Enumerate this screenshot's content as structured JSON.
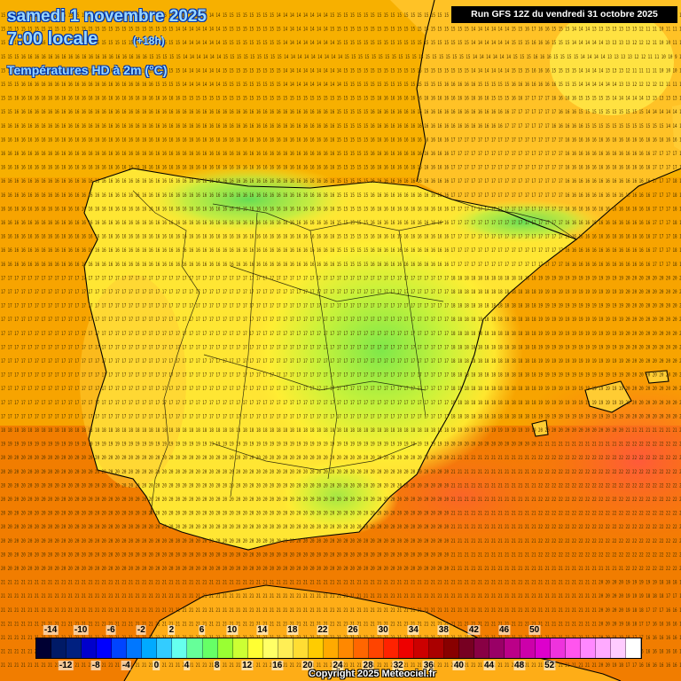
{
  "header": {
    "date": "samedi 1 novembre 2025",
    "time": "7:00 locale",
    "offset": "(+18h)",
    "parameter": "Températures HD à 2m (°C)",
    "run": "Run GFS 12Z du vendredi 31 octobre 2025"
  },
  "legend": {
    "top_labels": [
      "-14",
      "-10",
      "-6",
      "-2",
      "2",
      "6",
      "10",
      "14",
      "18",
      "22",
      "26",
      "30",
      "34",
      "38",
      "42",
      "46",
      "50"
    ],
    "bottom_labels": [
      "-12",
      "-8",
      "-4",
      "0",
      "4",
      "8",
      "12",
      "16",
      "20",
      "24",
      "28",
      "32",
      "36",
      "40",
      "44",
      "48",
      "52"
    ],
    "colors": [
      "#000033",
      "#001a66",
      "#002080",
      "#0000cc",
      "#0000ff",
      "#0044ff",
      "#0077ff",
      "#00aaff",
      "#33ccff",
      "#66ffee",
      "#66ff99",
      "#66ff66",
      "#99ff33",
      "#ccff33",
      "#ffff33",
      "#ffff66",
      "#ffee55",
      "#ffdd33",
      "#ffcc00",
      "#ffaa00",
      "#ff8800",
      "#ff6600",
      "#ff4400",
      "#ff2200",
      "#ee0000",
      "#cc0000",
      "#aa0000",
      "#880000",
      "#770022",
      "#880044",
      "#990066",
      "#bb0088",
      "#cc00aa",
      "#dd00cc",
      "#ee33dd",
      "#ff55ee",
      "#ff88ff",
      "#ffaaff",
      "#ffccff",
      "#ffffff"
    ]
  },
  "copyright": "Copyright 2025 Meteociel.fr",
  "grid_rows": [
    "15 15 15 15 15 15 15 15 15 15 15 15 15 15 15 15 15 15 15 15 15 15 15 15 15 15 14 15 14 14 14 14 14 15 15 15 15 15 15 15 15 14 14 14 14 14 14 14 14 15 15 15 15 15 15 15 15 15 15 15 15 15 15 15 15 15 15 15 15 15 14 14 14 14 14 14 15 15 16 16 16 16 15 15 15 15 14 14 14 14 14 14 13 13 12 12 11 11 11 11 11 11 11",
    "15 15 15 15 15 15 15 15 15 15 15 15 15 15 15 15 15 15 15 15 15 15 15 15 15 15 14 14 14 14 14 14 14 15 15 15 15 15 15 15 15 15 14 14 14 14 14 14 14 15 15 15 15 15 15 15 15 15 15 15 15 15 15 15 15 15 15 15 15 15 14 14 14 14 14 14 15 15 16 17 16 16 15 15 15 14 14 14 13 13 13 13 13 13 13 12 11 11 10 11 11 11 11",
    "15 15 15 16 16 16 16 16 16 16 15 15 15 15 15 15 15 15 15 15 15 15 15 15 15 15 15 14 14 14 14 14 14 15 15 15 15 15 15 15 15 15 14 14 14 14 14 14 14 14 15 15 15 15 15 15 15 15 15 15 15 15 15 15 15 15 15 15 15 15 14 14 14 14 14 14 15 15 15 16 16 16 15 15 15 14 14 14 14 14 13 13 13 13 12 12 12 11 10 10 11 11 11",
    "15 15 15 16 16 16 16 16 16 16 16 16 16 16 16 16 16 16 16 16 16 16 15 15 15 15 15 14 14 14 14 14 14 15 15 15 15 15 15 15 15 15 14 14 14 14 14 14 14 14 14 15 15 15 15 15 15 15 15 15 15 15 15 15 15 15 15 15 15 15 14 14 14 14 14 14 15 15 15 16 16 16 15 15 15 15 14 14 14 14 13 13 13 13 12 12 11 11 10 10 9 10 11",
    "15 15 15 16 16 16 16 16 16 16 16 16 16 16 16 16 16 16 16 16 16 16 15 15 15 15 15 14 14 14 14 14 14 15 15 15 15 15 15 15 15 15 14 14 14 14 14 14 14 14 14 15 15 15 15 15 15 15 15 15 15 15 15 15 15 15 15 15 15 15 14 14 14 14 14 14 15 15 15 16 16 16 15 15 15 15 14 14 14 14 13 13 13 12 11 11 11 11 10 10 10 10 10",
    "15 15 15 16 16 16 16 16 16 16 16 16 16 16 16 16 16 16 16 16 16 16 16 15 15 15 15 14 14 14 14 14 14 15 15 15 15 15 15 15 15 15 14 14 14 14 14 14 14 14 14 15 15 15 15 15 15 15 15 15 15 15 15 15 15 15 16 16 16 16 16 15 15 15 15 15 16 16 16 16 16 16 16 15 15 15 14 14 14 14 14 14 13 13 12 12 12 12 12 11 11 11 11",
    "15 15 16 16 16 16 16 16 16 16 16 16 16 16 16 16 16 16 16 16 16 16 16 16 16 16 16 15 15 15 15 15 15 15 15 15 15 15 15 15 15 15 15 15 15 15 15 15 15 15 15 15 15 15 15 15 16 16 16 16 16 16 16 16 16 16 16 16 16 16 16 16 16 15 15 15 16 16 17 17 17 17 16 16 16 16 15 15 15 15 15 14 14 14 14 14 13 13 13 13 13 13 12",
    "15 15 16 16 16 16 16 16 16 16 16 16 16 16 16 16 16 16 16 16 16 16 16 16 16 16 16 16 16 16 16 16 16 16 16 16 16 16 16 16 16 16 16 16 16 16 16 16 16 16 15 15 15 15 15 16 16 16 16 16 16 16 16 16 16 16 16 16 16 16 16 16 16 16 16 16 17 17 17 17 17 17 17 16 16 16 15 15 15 15 15 15 15 15 15 15 14 14 14 14 14 14 13",
    "16 16 16 16 16 16 16 16 16 16 16 16 16 16 16 16 16 16 16 16 16 16 16 16 16 16 16 16 16 16 16 16 16 16 16 16 16 16 16 16 16 16 16 16 16 16 16 16 16 16 15 15 15 15 15 16 16 16 16 16 16 16 16 16 16 16 16 16 16 16 16 16 16 16 16 17 17 17 17 17 17 17 16 16 16 16 16 15 15 15 15 15 15 15 15 15 15 15 15 14 14 14 14",
    "16 16 16 16 16 16 16 16 16 16 16 16 16 16 16 16 16 16 16 16 16 16 16 16 16 16 16 16 16 16 16 16 16 16 16 16 16 16 16 16 16 16 16 16 16 16 16 16 16 16 15 15 15 15 15 16 16 16 16 16 16 16 16 16 16 16 16 17 17 17 17 17 17 17 17 17 17 17 17 17 17 17 17 17 16 16 16 16 16 16 16 16 16 16 16 16 16 16 16 16 16 16 16",
    "16 16 16 16 16 16 16 16 16 16 16 16 16 16 16 16 16 16 16 16 16 16 16 16 16 16 16 16 16 16 16 16 16 16 16 16 16 16 16 16 16 16 16 16 16 16 16 16 16 16 15 15 15 15 15 16 16 16 16 16 16 16 16 16 16 16 16 17 17 17 17 17 17 17 17 17 17 17 17 17 17 17 17 17 16 16 16 16 16 16 16 16 16 16 16 16 16 17 17 17 17 17 17",
    "16 16 16 16 16 16 16 16 16 16 16 16 16 16 16 16 16 16 16 16 16 16 16 16 16 16 16 16 16 16 16 16 16 16 16 16 16 16 16 16 16 16 16 16 16 16 16 16 16 16 15 15 15 15 15 16 16 16 16 16 16 16 16 16 16 16 16 17 17 17 17 17 17 17 17 17 17 17 17 17 17 17 17 17 16 16 16 16 16 16 16 16 16 16 16 16 16 17 17 17 17 17 17",
    "16 16 16 16 16 16 16 16 16 16 16 16 16 16 16 16 16 16 16 16 16 16 16 16 16 16 16 16 16 16 16 16 16 16 16 16 16 16 16 16 16 16 16 16 16 16 16 16 16 16 15 15 15 15 15 16 16 16 16 16 16 16 16 16 16 16 16 17 17 17 17 17 17 17 17 17 17 17 17 17 17 17 17 17 16 16 16 16 16 16 16 16 16 16 16 16 16 17 17 17 18 18 18",
    "16 16 16 16 16 16 16 16 16 16 16 16 16 16 16 16 16 16 16 16 16 16 16 16 16 16 16 16 16 16 16 16 16 16 16 16 16 16 16 16 16 16 16 16 16 16 16 16 16 16 15 15 15 15 15 16 16 16 16 16 16 16 16 16 16 16 16 17 17 17 17 17 17 17 17 17 17 17 17 17 17 17 17 17 16 16 16 16 16 16 16 16 16 16 16 16 16 17 17 17 18 18 18",
    "16 16 16 16 16 16 16 16 16 16 16 16 16 16 16 16 16 16 16 16 16 16 16 16 16 16 16 16 16 16 16 16 16 16 16 16 16 16 16 16 16 16 16 16 16 16 16 16 16 16 15 15 15 15 15 16 16 16 16 16 16 16 16 16 16 16 16 17 17 17 17 17 17 17 17 17 17 17 17 17 17 17 17 17 16 16 16 16 16 16 16 16 16 16 16 16 16 17 17 17 18 18 18",
    "16 16 16 16 16 16 16 16 16 16 16 16 16 16 16 16 16 16 16 16 16 16 16 16 16 16 16 16 16 16 16 16 16 16 16 16 16 16 16 16 16 16 16 16 16 16 16 16 16 16 15 15 15 15 15 16 16 16 16 16 16 16 16 16 16 16 16 17 17 17 17 17 17 17 17 17 17 17 17 17 17 17 17 17 16 16 16 16 16 16 16 16 16 16 16 16 16 17 17 17 18 18 18",
    "16 16 16 16 16 16 16 16 16 16 16 16 16 16 16 16 16 16 16 16 16 16 16 16 16 16 16 16 16 16 16 16 16 16 16 16 16 16 16 16 16 16 16 16 16 16 16 16 16 16 15 15 15 15 15 16 16 16 16 16 16 16 16 16 16 16 16 17 17 17 17 17 17 17 17 17 17 17 17 17 17 17 17 17 16 16 16 16 16 16 16 16 16 16 16 16 16 17 17 17 18 18 18",
    "16 16 16 16 16 16 16 16 16 16 16 16 16 16 16 16 16 16 16 16 16 16 16 16 16 16 16 16 16 16 16 16 16 16 16 16 16 16 16 16 16 16 16 16 16 16 16 16 16 16 15 15 15 15 15 16 16 16 16 16 16 16 16 16 16 16 16 17 17 17 17 17 17 17 17 17 17 17 17 17 17 17 17 17 16 16 16 16 16 16 16 16 16 16 16 16 16 17 17 17 18 18 18",
    "16 16 16 16 16 16 16 16 16 16 16 16 16 16 16 16 16 16 16 16 16 16 16 16 16 16 16 16 16 16 16 16 16 16 16 16 16 16 16 16 16 16 16 16 16 16 16 16 16 16 15 15 15 15 15 16 16 16 16 16 16 16 16 16 16 16 16 17 17 17 17 17 17 17 17 17 17 17 17 17 17 17 17 17 16 16 16 16 16 16 16 16 16 16 16 16 16 17 17 17 18 18 18",
    "17 17 17 17 17 17 17 17 17 17 17 17 17 17 17 17 17 17 17 17 17 17 17 17 17 17 17 17 17 17 17 17 17 17 17 17 17 17 17 17 17 17 17 17 17 17 17 17 17 17 17 17 17 17 17 17 17 17 17 17 17 17 17 17 17 17 17 18 18 18 18 18 18 18 18 18 18 18 18 18 19 19 19 19 19 19 19 19 19 19 19 19 19 20 20 20 20 20 20 20 20 20 20",
    "17 17 17 17 17 17 17 17 17 17 17 17 17 17 17 17 17 17 17 17 17 17 17 17 17 17 17 17 17 17 17 17 17 17 17 17 17 17 17 17 17 17 17 17 17 17 17 17 17 17 17 17 17 17 17 17 17 17 17 17 17 17 17 17 17 17 17 18 18 18 18 18 18 18 18 18 18 18 18 18 19 19 19 19 19 19 19 19 19 19 19 19 19 20 20 20 20 20 20 20 20 20 20",
    "17 17 17 17 17 17 17 17 17 17 17 17 17 17 17 17 17 17 17 17 17 17 17 17 17 17 17 17 17 17 17 17 17 17 17 17 17 17 17 17 17 17 17 17 17 17 17 17 17 17 17 17 17 17 17 17 17 17 17 17 17 17 17 17 17 17 17 18 18 18 18 18 18 18 18 18 18 18 18 18 19 19 19 19 19 19 19 19 19 19 19 19 19 20 20 20 20 20 20 20 20 20 20",
    "17 17 17 17 17 17 17 17 17 17 17 17 17 17 17 17 17 17 17 17 17 17 17 17 17 17 17 17 17 17 17 17 17 17 17 17 17 17 17 17 17 17 17 17 17 17 17 17 17 17 17 17 17 17 17 17 17 17 17 17 17 17 17 17 17 17 17 18 18 18 18 18 18 18 18 18 18 18 18 18 19 19 19 19 19 19 19 19 19 19 19 19 19 20 20 20 20 20 20 20 20 20 20",
    "17 17 17 17 17 17 17 17 17 17 17 17 17 17 17 17 17 17 17 17 17 17 17 17 17 17 17 17 17 17 17 17 17 17 17 17 17 17 17 17 17 17 17 17 17 17 17 17 17 17 17 17 17 17 17 17 17 17 17 17 17 17 17 17 17 17 17 18 18 18 18 18 18 18 18 18 18 18 18 18 19 19 19 19 19 19 19 19 19 19 19 19 19 20 20 20 20 20 20 20 20 20 20",
    "17 17 17 17 17 17 17 17 17 17 17 17 17 17 17 17 17 17 17 17 17 17 17 17 17 17 17 17 17 17 17 17 17 17 17 17 17 17 17 17 17 17 17 17 17 17 17 17 17 17 17 17 17 17 17 17 17 17 17 17 17 17 17 17 17 17 17 18 18 18 18 18 18 18 18 18 18 18 18 18 19 19 19 19 19 19 19 19 19 19 19 19 19 20 20 20 20 20 20 20 20 20 20",
    "17 17 17 17 17 17 17 17 17 17 17 17 17 17 17 17 17 17 17 17 17 17 17 17 17 17 17 17 17 17 17 17 17 17 17 17 17 17 17 17 17 17 17 17 17 17 17 17 17 17 17 17 17 17 17 17 17 17 17 17 17 17 17 17 17 17 17 18 18 18 18 18 18 18 18 18 18 18 18 18 19 19 19 19 19 19 19 19 19 19 19 19 19 20 20 20 20 20 20 20 20 20 20",
    "17 17 17 17 17 17 17 17 17 17 17 17 17 17 17 17 17 17 17 17 17 17 17 17 17 17 17 17 17 17 17 17 17 17 17 17 17 17 17 17 17 17 17 17 17 17 17 17 17 17 17 17 17 17 17 17 17 17 17 17 17 17 17 17 17 17 17 18 18 18 18 18 18 18 18 18 18 18 18 18 19 19 19 19 19 19 19 19 19 19 19 19 19 20 20 20 20 20 20 20 20 20 20",
    "17 17 17 17 17 17 17 17 17 17 17 17 17 17 17 17 17 17 17 17 17 17 17 17 17 17 17 17 17 17 17 17 17 17 17 17 17 17 17 17 17 17 17 17 17 17 17 17 17 17 17 17 17 17 17 17 17 17 17 17 17 17 17 17 17 17 17 18 18 18 18 18 18 18 18 18 18 18 18 18 19 19 19 19 19 19 19 19 19 19 19 19 19 20 20 20 20 20 20 20 20 20 20",
    "17 17 17 17 17 17 17 17 17 17 17 17 17 17 17 17 17 17 17 17 17 17 17 17 17 17 17 17 17 17 17 17 17 17 17 17 17 17 17 17 17 17 17 17 17 17 17 17 17 17 17 17 17 17 17 17 17 17 17 17 17 17 17 17 17 17 17 18 18 18 18 18 18 18 18 18 18 18 18 18 19 19 19 19 19 19 19 19 19 19 19 19 19 20 20 20 20 20 20 20 20 20 20",
    "17 17 17 17 17 17 17 17 17 17 17 17 17 17 17 17 17 17 17 17 17 17 17 17 17 17 17 17 17 17 17 17 17 17 17 17 17 17 17 17 17 17 17 17 17 17 17 17 17 17 17 17 17 17 17 17 17 17 17 17 17 17 17 17 17 17 17 18 18 18 18 18 18 18 18 18 18 18 18 18 19 19 19 19 19 19 19 19 19 19 19 19 19 20 20 20 20 20 20 20 20 20 20",
    "18 18 18 18 18 18 18 18 18 18 18 18 18 18 18 18 18 18 18 18 18 18 18 18 18 18 18 18 18 18 18 18 18 18 18 18 18 18 18 18 18 18 18 18 18 18 18 18 18 18 18 18 18 18 18 18 18 18 18 18 18 18 18 18 18 18 18 19 19 19 19 19 19 19 19 19 19 19 19 19 20 20 20 20 20 20 20 20 20 20 20 20 20 21 21 21 21 21 21 21 21 21 21",
    "19 19 19 19 19 19 19 19 19 19 19 19 19 19 19 19 19 19 19 19 19 19 19 19 19 19 19 19 19 19 19 19 19 19 19 19 19 19 19 19 19 19 19 19 19 19 19 19 19 19 19 19 19 19 19 19 19 19 19 19 19 19 19 19 19 19 19 20 20 20 20 20 20 20 20 20 20 20 20 20 21 21 21 21 21 21 21 21 21 21 21 21 21 22 22 22 22 22 22 22 22 22 22",
    "20 20 20 20 20 20 20 20 20 20 20 20 20 20 20 20 20 20 20 20 20 20 20 20 20 20 20 20 20 20 20 20 20 20 20 20 20 20 20 20 20 20 20 20 20 20 20 20 20 20 20 20 20 20 20 20 20 20 20 20 20 20 20 20 20 20 20 21 21 21 21 21 21 21 21 21 21 21 21 21 22 22 22 22 22 22 22 22 22 22 22 22 22 22 22 22 22 22 22 22 22 22 22",
    "20 20 20 20 20 20 20 20 20 20 20 20 20 20 20 20 20 20 20 20 20 20 20 20 20 20 20 20 20 20 20 20 20 20 20 20 20 20 20 20 20 20 20 20 20 20 20 20 20 20 20 20 20 20 20 20 20 20 20 20 20 20 20 20 20 20 20 21 21 21 21 21 21 21 21 21 21 21 21 21 22 22 22 22 22 22 22 22 22 22 22 22 22 22 22 22 22 22 22 22 22 22 22",
    "20 20 20 20 20 20 20 20 20 20 20 20 20 20 20 20 20 20 20 20 20 20 20 20 20 20 20 20 20 20 20 20 20 20 20 20 20 20 20 20 20 20 20 20 20 20 20 20 20 20 20 20 20 20 20 20 20 20 20 20 20 20 20 20 20 20 20 21 21 21 21 21 21 21 21 21 21 21 21 21 22 22 22 22 22 22 22 22 22 22 22 22 22 22 22 22 22 22 22 22 22 22 22",
    "20 20 20 20 20 20 20 20 20 20 20 20 20 20 20 20 20 20 20 20 20 20 20 20 20 20 20 20 20 20 20 20 20 20 20 20 20 20 20 20 20 20 20 20 20 20 20 20 20 20 20 20 20 20 20 20 20 20 20 20 20 20 20 20 20 20 20 21 21 21 21 21 21 21 21 21 21 21 21 21 22 22 22 22 22 22 22 22 22 22 22 22 22 22 22 22 22 22 22 22 22 22 22",
    "20 20 20 20 20 20 20 20 20 20 20 20 20 20 20 20 20 20 20 20 20 20 20 20 20 20 20 20 20 20 20 20 20 20 20 20 20 20 20 20 20 20 20 20 20 20 20 20 20 20 20 20 20 20 20 20 20 20 20 20 20 20 20 20 20 20 20 21 21 21 21 21 21 21 21 21 21 21 21 21 22 22 22 22 22 22 22 22 22 22 22 22 22 22 22 22 22 22 22 22 22 22 22",
    "20 20 20 20 20 20 20 20 20 20 20 20 20 20 20 20 20 20 20 20 20 20 20 20 20 20 20 20 20 20 20 20 20 20 20 20 20 20 20 20 20 20 20 20 20 20 20 20 20 20 20 20 20 20 20 20 20 20 20 20 20 20 20 20 20 20 20 21 21 21 21 21 21 21 21 21 21 21 21 21 22 22 22 22 22 22 22 22 22 22 22 22 22 22 22 22 22 22 22 22 22 22 22",
    "20 20 20 20 20 20 20 20 20 20 20 20 20 20 20 20 20 20 20 20 20 20 20 20 20 20 20 20 20 20 20 20 20 20 20 20 20 20 20 20 20 20 20 20 20 20 20 20 20 20 20 20 20 20 20 20 20 20 20 20 20 20 20 20 20 20 20 21 21 21 21 21 21 21 21 21 21 21 21 21 22 22 22 22 22 22 22 22 22 22 22 22 22 22 22 22 22 22 22 22 22 22 22",
    "20 20 20 20 20 20 20 20 20 20 20 20 20 20 20 20 20 20 20 20 20 20 20 20 20 20 20 20 20 20 20 20 20 20 20 20 20 20 20 20 20 20 20 20 20 20 20 20 20 20 20 20 20 20 20 20 20 20 20 20 20 20 20 20 20 20 20 21 21 21 21 21 21 21 21 21 21 21 21 21 22 22 22 22 22 22 22 22 22 22 22 22 22 22 22 22 22 22 22 22 22 22 22",
    "20 20 20 20 20 20 20 20 20 20 20 20 20 20 20 20 20 20 20 20 20 20 20 20 20 20 20 20 20 20 20 20 20 20 20 20 20 20 20 20 20 20 20 20 20 20 20 20 20 20 20 20 20 20 20 20 20 20 20 20 20 20 20 20 20 20 20 21 21 21 21 21 21 21 21 21 21 21 21 21 21 21 21 21 21 21 21 21 21 21 21 21 21 22 22 22 22 22 22 22 22 22 22",
    "21 21 21 21 21 21 21 21 21 21 21 21 21 21 21 21 21 21 21 21 21 21 21 21 21 21 21 21 21 21 21 21 21 21 21 21 21 21 21 21 21 21 21 21 21 21 21 21 21 21 21 21 21 21 21 21 21 21 21 21 21 21 21 21 21 21 21 21 21 21 21 21 21 21 21 21 21 21 21 21 21 21 21 21 21 21 21 21 21 20 20 20 20 19 19 19 19 19 18 18 18 18 18",
    "21 21 21 21 21 21 21 21 21 21 21 21 21 21 21 21 21 21 21 21 21 21 21 21 21 21 21 21 21 21 21 21 21 21 21 21 21 21 21 21 21 21 21 21 21 21 21 21 21 21 21 21 21 21 21 21 21 21 21 21 21 21 21 21 21 21 21 21 21 21 21 21 21 21 21 21 21 21 21 21 21 21 21 21 21 21 21 21 21 20 20 20 20 19 19 19 18 18 18 17 17 17 17",
    "21 21 21 21 21 21 21 21 21 21 21 21 21 21 21 21 21 21 21 21 21 21 21 21 21 21 21 21 21 21 21 21 21 21 21 21 21 21 21 21 21 21 21 21 21 21 21 21 21 21 21 21 21 21 21 21 21 21 21 21 21 21 21 21 21 21 21 21 21 21 21 21 21 21 21 21 21 21 21 21 21 21 21 21 21 21 21 21 21 20 20 20 20 19 18 18 17 17 17 16 16 16 16",
    "21 21 21 21 21 21 21 21 21 21 21 21 21 21 21 21 21 21 21 21 21 21 21 21 21 21 21 21 21 21 21 21 21 21 21 21 21 21 21 21 21 21 21 21 21 21 21 21 21 21 21 21 21 21 21 21 21 21 21 21 21 21 21 21 21 21 21 21 21 21 21 21 21 21 21 21 21 21 21 21 21 21 21 21 21 21 21 21 21 20 20 20 19 18 18 17 17 16 16 16 16 16 16",
    "21 21 21 21 21 21 21 21 21 21 21 21 21 21 21 21 21 21 21 21 21 21 21 21 21 21 21 21 21 21 21 21 21 21 21 21 21 21 21 21 21 21 21 21 21 21 21 21 21 21 21 21 21 21 21 21 21 21 21 21 21 21 21 21 21 21 21 21 21 21 21 21 21 21 21 21 21 21 21 21 21 21 21 21 21 21 21 21 21 20 20 19 19 18 17 17 16 16 16 16 16 16 16",
    "21 21 21 21 21 21 21 21 21 21 21 21 21 21 21 21 21 21 21 21 21 21 21 21 21 21 21 21 21 21 21 21 21 21 21 21 21 21 21 21 21 21 21 21 21 21 21 21 21 21 21 21 21 21 21 21 21 21 21 21 21 21 21 21 21 21 21 21 21 21 21 21 21 21 21 21 21 21 21 21 21 21 21 21 21 21 21 21 21 20 20 19 18 17 17 16 16 16 16 16 16 16 16",
    "21 21 21 21 21 21 21 21 21 21 21 21 21 21 21 21 21 21 21 21 21 21 21 21 21 21 21 21 21 21 21 21 21 21 21 21 21 21 21 21 21 21 21 21 21 21 21 21 21 21 21 21 21 21 21 21 21 21 21 21 21 21 21 21 21 21 21 21 21 21 21 21 21 21 21 21 21 21 21 21 21 21 21 21 21 21 21 21 21 20 20 19 18 17 17 16 16 16 16 16 16 16 16"
  ]
}
